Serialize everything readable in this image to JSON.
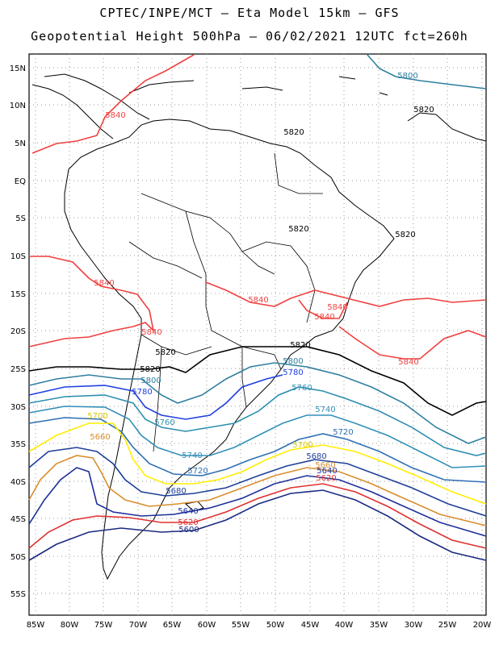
{
  "header": {
    "title_line1": "CPTEC/INPE/MCT –  Eta Model 15km – GFS",
    "title_line2": "Geopotential Height 500hPa – 06/02/2021 12UTC fct=260h"
  },
  "map": {
    "lat_labels": [
      "15N",
      "10N",
      "5N",
      "EQ",
      "5S",
      "10S",
      "15S",
      "20S",
      "25S",
      "30S",
      "35S",
      "40S",
      "45S",
      "50S",
      "55S"
    ],
    "lon_labels": [
      "85W",
      "80W",
      "75W",
      "70W",
      "65W",
      "60W",
      "55W",
      "50W",
      "45W",
      "40W",
      "35W",
      "30W",
      "25W",
      "20W"
    ],
    "contour_colors": {
      "5520": "#000066",
      "5580": "#000066",
      "5600": "#1a2a80",
      "5620": "#e03030",
      "5640": "#1f2f9a",
      "5660": "#d98d2e",
      "5680": "#1f3f9a",
      "5700": "#ffee00",
      "5720": "#2f6fb5",
      "5740": "#3390b8",
      "5760": "#2d8fb0",
      "5780": "#1f3fe0",
      "5800": "#3a8ab0",
      "5820": "#000000",
      "5840": "#f04040"
    },
    "contour_labels": [
      {
        "text": "5800",
        "color": "#2f7fa0"
      },
      {
        "text": "5820",
        "color": "#000000"
      },
      {
        "text": "5820",
        "color": "#000000"
      },
      {
        "text": "5820",
        "color": "#000000"
      },
      {
        "text": "5820",
        "color": "#000000"
      },
      {
        "text": "5840",
        "color": "#f04040"
      },
      {
        "text": "5820",
        "color": "#000000"
      },
      {
        "text": "5840",
        "color": "#f04040"
      },
      {
        "text": "5840",
        "color": "#f04040"
      },
      {
        "text": "5840",
        "color": "#f04040"
      },
      {
        "text": "5840",
        "color": "#f04040"
      },
      {
        "text": "5840",
        "color": "#f04040"
      },
      {
        "text": "5840",
        "color": "#f04040"
      },
      {
        "text": "5820",
        "color": "#000000"
      },
      {
        "text": "5820",
        "color": "#000000"
      },
      {
        "text": "5800",
        "color": "#2f7fa0"
      },
      {
        "text": "5780",
        "color": "#1f3fe0"
      },
      {
        "text": "5800",
        "color": "#2f7fa0"
      },
      {
        "text": "5780",
        "color": "#1f3fe0"
      },
      {
        "text": "5760",
        "color": "#2d8fb0"
      },
      {
        "text": "5760",
        "color": "#2d8fb0"
      },
      {
        "text": "5740",
        "color": "#3390b8"
      },
      {
        "text": "5700",
        "color": "#d8c800"
      },
      {
        "text": "5720",
        "color": "#2f6fb5"
      },
      {
        "text": "5660",
        "color": "#d98d2e"
      },
      {
        "text": "5740",
        "color": "#3390b8"
      },
      {
        "text": "5700",
        "color": "#d8c800"
      },
      {
        "text": "5720",
        "color": "#2f6fb5"
      },
      {
        "text": "5680",
        "color": "#1f3f9a"
      },
      {
        "text": "5660",
        "color": "#d98d2e"
      },
      {
        "text": "5640",
        "color": "#1f2f9a"
      },
      {
        "text": "5620",
        "color": "#e03030"
      },
      {
        "text": "5680",
        "color": "#1f3f9a"
      },
      {
        "text": "5640",
        "color": "#1f2f9a"
      },
      {
        "text": "5620",
        "color": "#e03030"
      },
      {
        "text": "5600",
        "color": "#1a2a80"
      }
    ]
  }
}
